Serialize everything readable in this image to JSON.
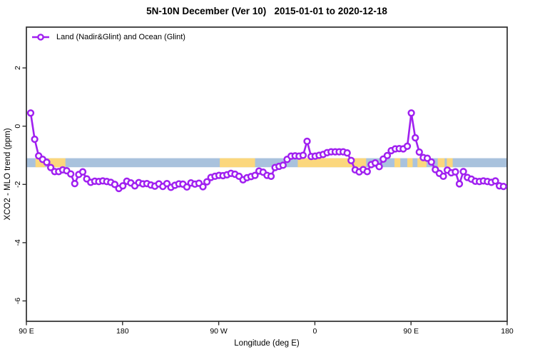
{
  "title": "5N-10N December (Ver 10)   2015-01-01 to 2020-12-18",
  "legend": {
    "label": "Land (Nadir&Glint) and Ocean (Glint)"
  },
  "chart_data": {
    "type": "line",
    "title": "5N-10N December (Ver 10)   2015-01-01 to 2020-12-18",
    "xlabel": "Longitude (deg E)",
    "ylabel": "XCO2 - MLO trend (ppm)",
    "xlim": [
      90,
      540
    ],
    "ylim": [
      -6.7,
      3.4
    ],
    "grid": false,
    "legend_position": "top-left",
    "x_ticks": [
      {
        "value": 90,
        "label": "90 E"
      },
      {
        "value": 180,
        "label": "180"
      },
      {
        "value": 270,
        "label": "90 W"
      },
      {
        "value": 360,
        "label": "0"
      },
      {
        "value": 450,
        "label": "90 E"
      },
      {
        "value": 540,
        "label": "180"
      }
    ],
    "y_ticks": [
      {
        "value": 2,
        "label": "2"
      },
      {
        "value": 0,
        "label": "0"
      },
      {
        "value": -2,
        "label": "-2"
      },
      {
        "value": -4,
        "label": "-4"
      },
      {
        "value": -6,
        "label": "-6"
      }
    ],
    "axis_color": "#2e2e2e",
    "band": {
      "description": "horizontal reference band, blue over ocean with yellow land segments",
      "y_range": [
        -1.41,
        -1.1
      ],
      "ocean_color": "#a9c2dd",
      "land_color": "#fbd77d",
      "land_longitude_ranges": [
        [
          98.5,
          107.5
        ],
        [
          110.5,
          126.5
        ],
        [
          271,
          304
        ],
        [
          344,
          408
        ],
        [
          434.5,
          440
        ],
        [
          446.5,
          451.5
        ],
        [
          456,
          464.5
        ],
        [
          475,
          481.5
        ],
        [
          483.5,
          489
        ]
      ]
    },
    "series": [
      {
        "name": "Land (Nadir&Glint) and Ocean (Glint)",
        "color": "#a020f0",
        "marker": "open-circle",
        "points": [
          [
            94,
            0.45
          ],
          [
            97.75,
            -0.45
          ],
          [
            101.5,
            -1.02
          ],
          [
            105.25,
            -1.14
          ],
          [
            109,
            -1.24
          ],
          [
            112.75,
            -1.42
          ],
          [
            116.5,
            -1.56
          ],
          [
            120.25,
            -1.56
          ],
          [
            124,
            -1.5
          ],
          [
            127.75,
            -1.53
          ],
          [
            131.5,
            -1.64
          ],
          [
            135.25,
            -1.97
          ],
          [
            139,
            -1.66
          ],
          [
            142.75,
            -1.57
          ],
          [
            146.5,
            -1.81
          ],
          [
            150.25,
            -1.93
          ],
          [
            154,
            -1.89
          ],
          [
            157.75,
            -1.9
          ],
          [
            161.5,
            -1.88
          ],
          [
            165.25,
            -1.9
          ],
          [
            169,
            -1.93
          ],
          [
            172.75,
            -2.0
          ],
          [
            176.5,
            -2.14
          ],
          [
            180.25,
            -2.05
          ],
          [
            184,
            -1.89
          ],
          [
            187.75,
            -1.95
          ],
          [
            191.5,
            -2.05
          ],
          [
            195.25,
            -1.94
          ],
          [
            199,
            -1.98
          ],
          [
            202.75,
            -1.97
          ],
          [
            206.5,
            -2.02
          ],
          [
            210.25,
            -2.06
          ],
          [
            214,
            -1.98
          ],
          [
            217.75,
            -2.07
          ],
          [
            221.5,
            -1.97
          ],
          [
            225.25,
            -2.1
          ],
          [
            229,
            -2.03
          ],
          [
            232.75,
            -1.98
          ],
          [
            236.5,
            -1.99
          ],
          [
            240.25,
            -2.09
          ],
          [
            244,
            -1.95
          ],
          [
            247.75,
            -1.99
          ],
          [
            251.5,
            -1.96
          ],
          [
            255.25,
            -2.08
          ],
          [
            259,
            -1.91
          ],
          [
            262.75,
            -1.76
          ],
          [
            266.5,
            -1.72
          ],
          [
            270.25,
            -1.69
          ],
          [
            274,
            -1.7
          ],
          [
            277.75,
            -1.67
          ],
          [
            281.5,
            -1.62
          ],
          [
            285.25,
            -1.65
          ],
          [
            289,
            -1.72
          ],
          [
            292.75,
            -1.84
          ],
          [
            296.5,
            -1.77
          ],
          [
            300.25,
            -1.73
          ],
          [
            304,
            -1.69
          ],
          [
            307.75,
            -1.54
          ],
          [
            311.5,
            -1.58
          ],
          [
            315.25,
            -1.69
          ],
          [
            319,
            -1.72
          ],
          [
            322.75,
            -1.42
          ],
          [
            326.5,
            -1.38
          ],
          [
            330.25,
            -1.34
          ],
          [
            334,
            -1.14
          ],
          [
            337.75,
            -1.03
          ],
          [
            341.5,
            -1.02
          ],
          [
            345.25,
            -1.03
          ],
          [
            349,
            -1.0
          ],
          [
            352.75,
            -0.52
          ],
          [
            356.5,
            -1.04
          ],
          [
            360.25,
            -1.03
          ],
          [
            364,
            -1.0
          ],
          [
            367.75,
            -0.97
          ],
          [
            371.5,
            -0.91
          ],
          [
            375.25,
            -0.88
          ],
          [
            379,
            -0.88
          ],
          [
            382.75,
            -0.88
          ],
          [
            386.5,
            -0.88
          ],
          [
            390.25,
            -0.92
          ],
          [
            394,
            -1.18
          ],
          [
            397.75,
            -1.5
          ],
          [
            401.5,
            -1.57
          ],
          [
            405.25,
            -1.49
          ],
          [
            409,
            -1.56
          ],
          [
            412.75,
            -1.32
          ],
          [
            416.5,
            -1.26
          ],
          [
            420.25,
            -1.39
          ],
          [
            424,
            -1.13
          ],
          [
            427.75,
            -1.01
          ],
          [
            431.5,
            -0.84
          ],
          [
            435.25,
            -0.78
          ],
          [
            439,
            -0.77
          ],
          [
            442.75,
            -0.78
          ],
          [
            446.5,
            -0.69
          ],
          [
            450.25,
            0.45
          ],
          [
            454,
            -0.4
          ],
          [
            457.75,
            -0.89
          ],
          [
            461.5,
            -1.08
          ],
          [
            465.25,
            -1.1
          ],
          [
            469,
            -1.23
          ],
          [
            472.75,
            -1.49
          ],
          [
            476.5,
            -1.62
          ],
          [
            480.25,
            -1.72
          ],
          [
            484,
            -1.51
          ],
          [
            487.75,
            -1.6
          ],
          [
            491.5,
            -1.57
          ],
          [
            495.25,
            -1.98
          ],
          [
            499,
            -1.56
          ],
          [
            502.75,
            -1.76
          ],
          [
            506.5,
            -1.82
          ],
          [
            510.25,
            -1.89
          ],
          [
            514,
            -1.9
          ],
          [
            517.75,
            -1.88
          ],
          [
            521.5,
            -1.9
          ],
          [
            525.25,
            -1.93
          ],
          [
            529,
            -1.88
          ],
          [
            532.75,
            -2.05
          ],
          [
            536.5,
            -2.07
          ]
        ]
      }
    ]
  }
}
